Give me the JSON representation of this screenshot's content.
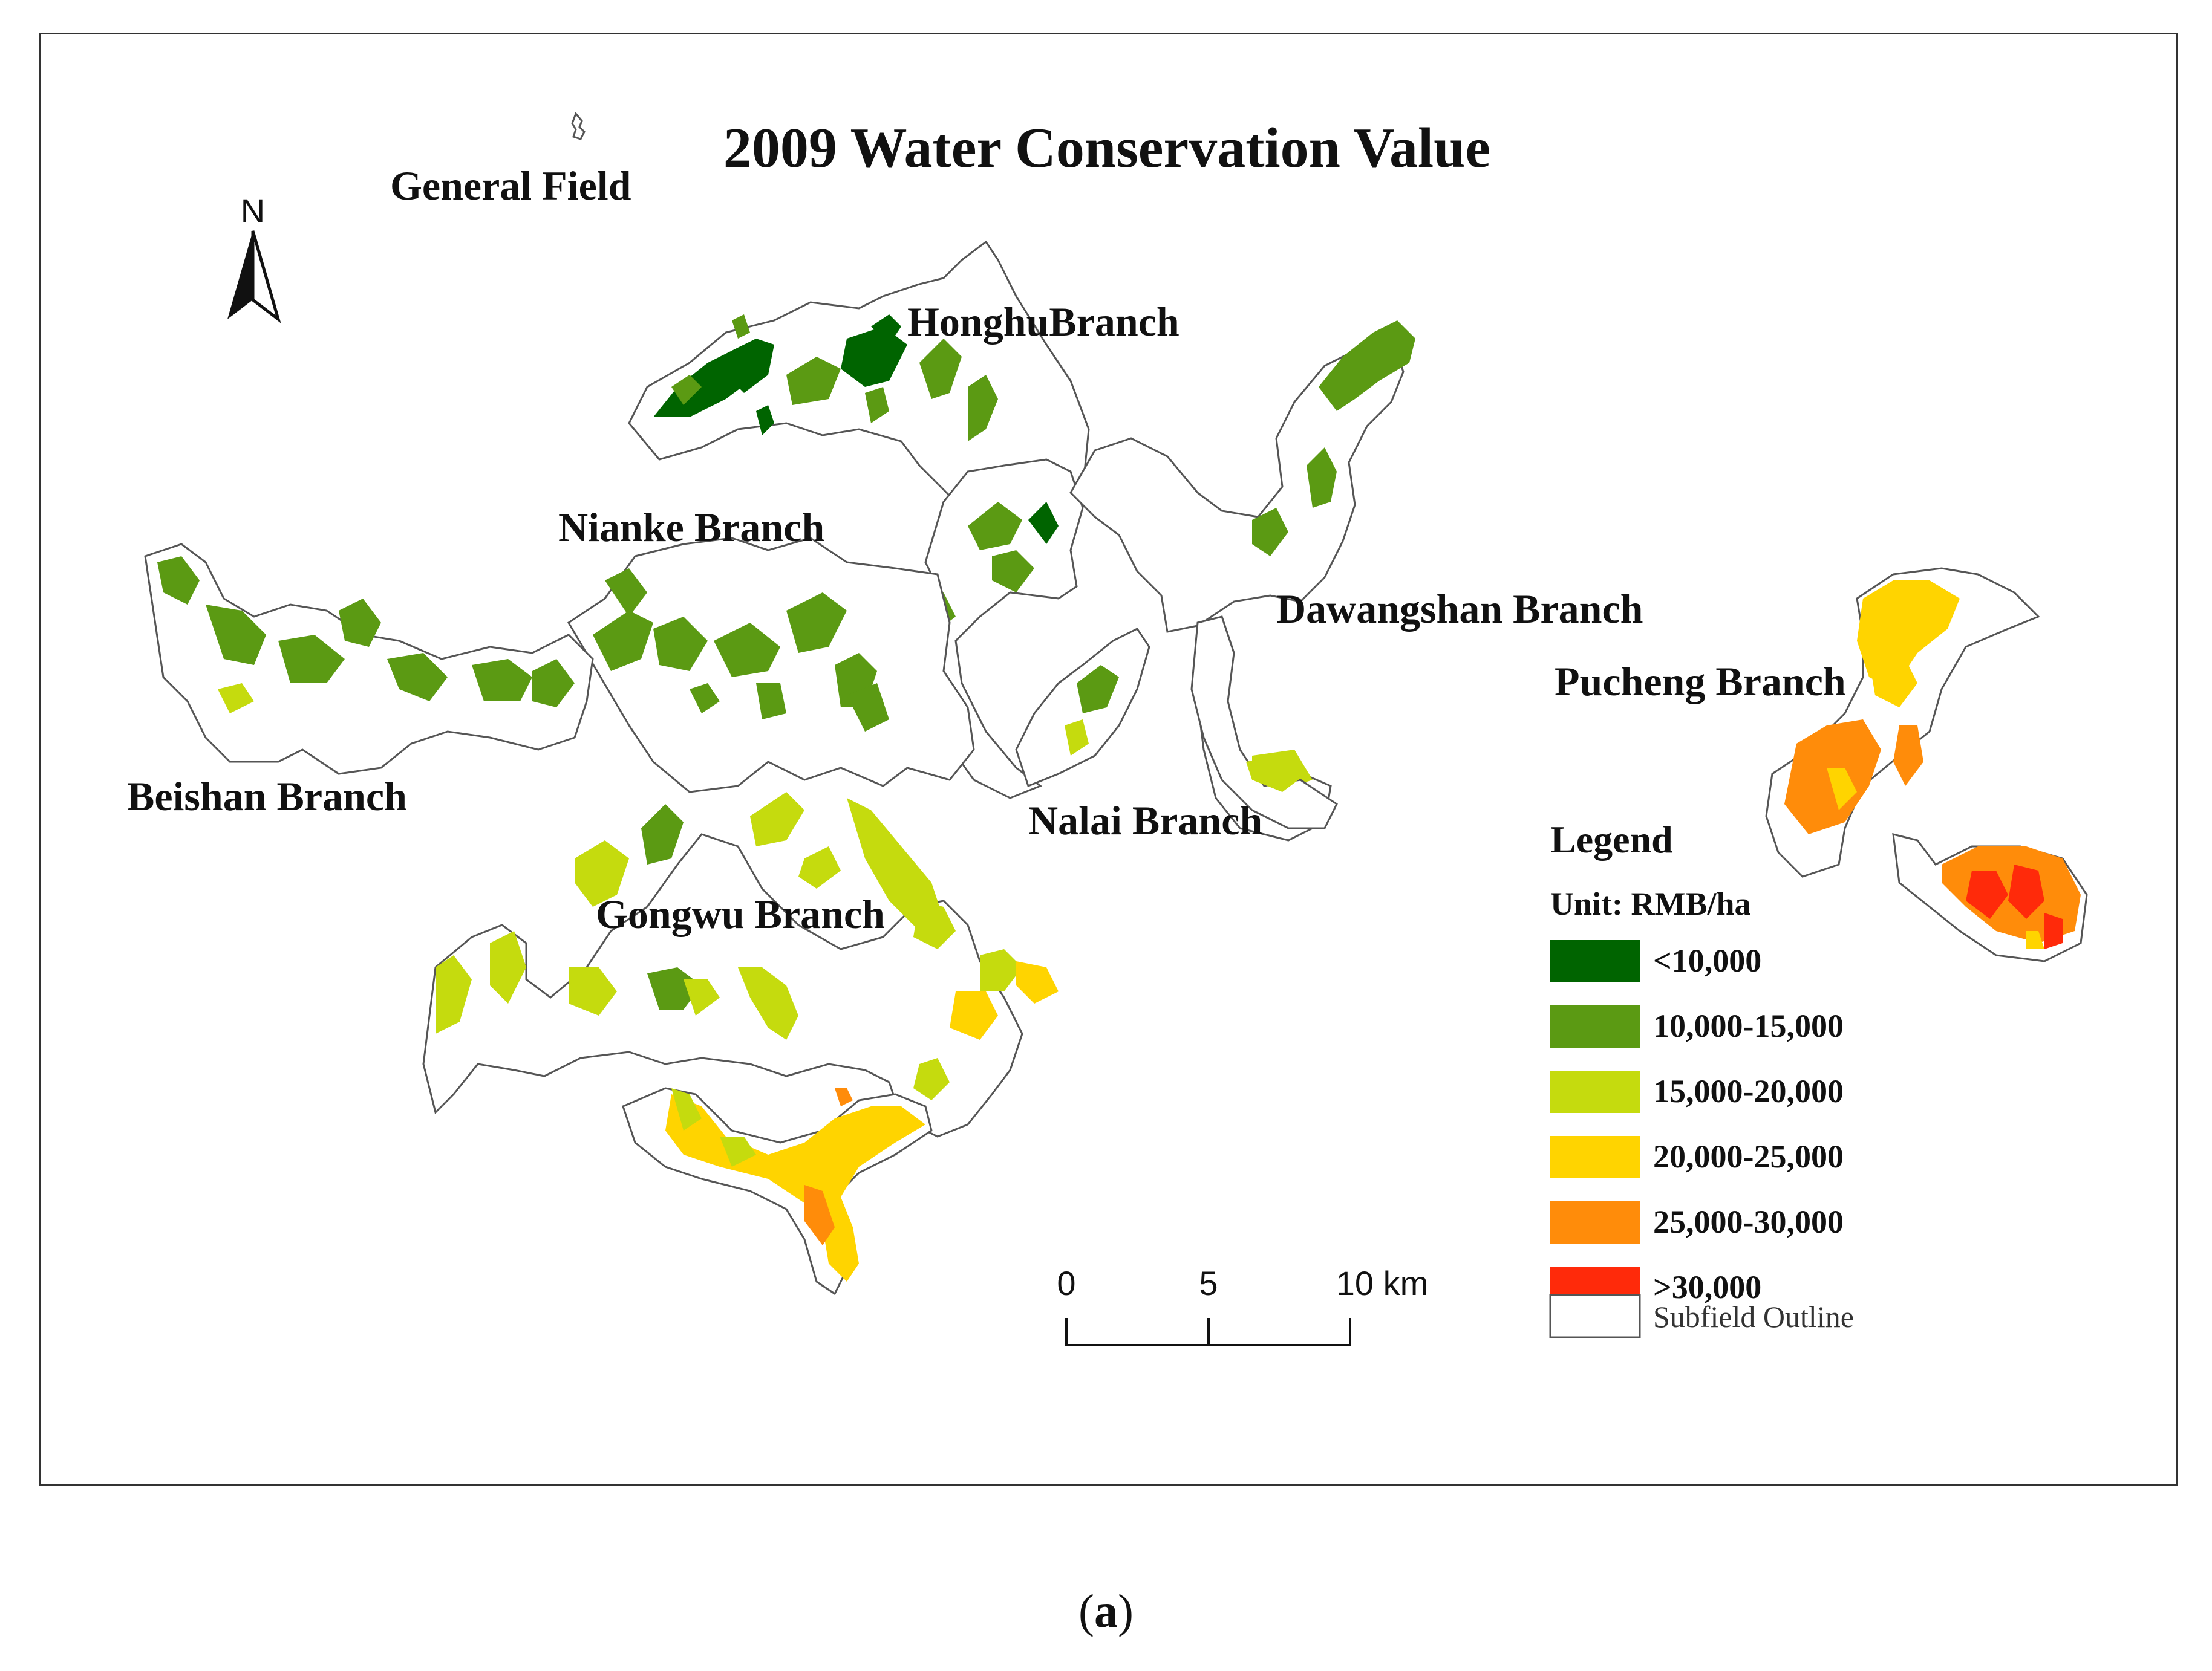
{
  "title": "2009 Water Conservation Value",
  "north_label": "N",
  "branches": {
    "general": "General Field",
    "honghu": "HonghuBranch",
    "nianke": "Nianke Branch",
    "dawangshan": "Dawangshan Branch",
    "pucheng": "Pucheng Branch",
    "beishan": "Beishan Branch",
    "nalai": "Nalai Branch",
    "gongwu": "Gongwu Branch"
  },
  "legend": {
    "title": "Legend",
    "unit": "Unit:  RMB/ha",
    "classes": [
      {
        "label": "<10,000",
        "color": "#006400"
      },
      {
        "label": "10,000-15,000",
        "color": "#5B9A13"
      },
      {
        "label": "15,000-20,000",
        "color": "#C5DB0E"
      },
      {
        "label": "20,000-25,000",
        "color": "#FFD400"
      },
      {
        "label": "25,000-30,000",
        "color": "#FF8C0A"
      },
      {
        "label": ">30,000",
        "color": "#FF2A0A"
      }
    ],
    "outline_label": "Subfield Outline"
  },
  "scale_bar": {
    "ticks": [
      "0",
      "5",
      "10 km"
    ]
  },
  "caption": {
    "open": "(",
    "letter": "a",
    "close": ")"
  }
}
